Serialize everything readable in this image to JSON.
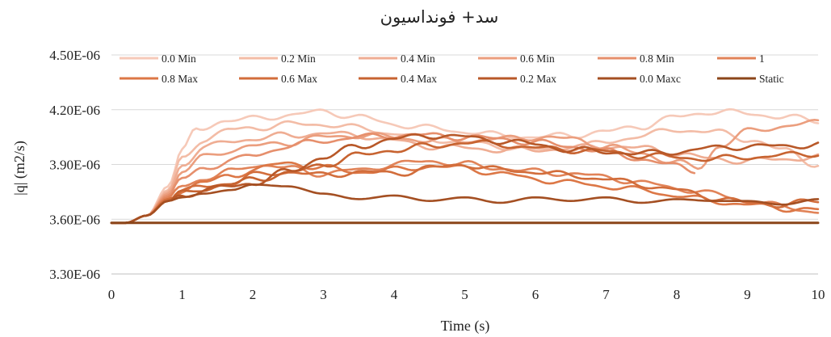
{
  "chart_data": {
    "type": "line",
    "title": "سد+ فونداسیون",
    "xlabel": "Time (s)",
    "ylabel": "|q| (m2/s)",
    "xlim": [
      0,
      10
    ],
    "ylim": [
      3.3e-06,
      4.5e-06
    ],
    "x_ticks": [
      "0",
      "1",
      "2",
      "3",
      "4",
      "5",
      "6",
      "7",
      "8",
      "9",
      "10"
    ],
    "y_ticks": [
      "3.30E-06",
      "3.60E-06",
      "3.90E-06",
      "4.20E-06",
      "4.50E-06"
    ],
    "y_tick_values": [
      3.3e-06,
      3.6e-06,
      3.9e-06,
      4.2e-06,
      4.5e-06
    ],
    "grid": "horizontal",
    "legend_position": "top",
    "series": [
      {
        "name": "0.0 Min",
        "color": "#f6c9b8",
        "x": [
          0,
          0.2,
          0.5,
          0.8,
          1.0,
          1.2,
          1.6,
          2.0,
          2.5,
          3.0,
          3.5,
          4.0,
          4.5,
          5.0,
          5.5,
          6.0,
          6.5,
          7.0,
          7.5,
          8.0,
          8.5,
          9.0,
          9.5,
          10.0
        ],
        "y": [
          3.58e-06,
          3.58e-06,
          3.62e-06,
          3.78e-06,
          3.97e-06,
          4.09e-06,
          4.14e-06,
          4.15e-06,
          4.17e-06,
          4.19e-06,
          4.16e-06,
          4.12e-06,
          4.1e-06,
          4.08e-06,
          4.06e-06,
          4.05e-06,
          4.06e-06,
          4.08e-06,
          4.11e-06,
          4.16e-06,
          4.19e-06,
          4.18e-06,
          4.16e-06,
          4.14e-06
        ]
      },
      {
        "name": "0.2 Min",
        "color": "#f3bca6",
        "x": [
          0,
          0.2,
          0.5,
          0.8,
          1.0,
          1.3,
          1.7,
          2.0,
          2.5,
          3.0,
          3.5,
          4.0,
          4.5,
          5.0,
          5.5,
          6.0,
          6.5,
          7.0,
          7.5,
          8.0,
          8.5,
          9.0,
          9.5,
          10.0
        ],
        "y": [
          3.58e-06,
          3.58e-06,
          3.62e-06,
          3.76e-06,
          3.93e-06,
          4.04e-06,
          4.09e-06,
          4.1e-06,
          4.12e-06,
          4.12e-06,
          4.1e-06,
          4.07e-06,
          4.04e-06,
          4.02e-06,
          4e-06,
          3.98e-06,
          3.99e-06,
          4.02e-06,
          4.06e-06,
          4.09e-06,
          4.08e-06,
          4.04e-06,
          3.98e-06,
          3.9e-06
        ]
      },
      {
        "name": "0.4 Min",
        "color": "#efad93",
        "x": [
          0,
          0.2,
          0.5,
          0.8,
          1.0,
          1.3,
          1.7,
          2.0,
          2.5,
          3.0,
          3.5,
          4.0,
          4.5,
          5.0,
          5.5,
          6.0,
          6.5,
          7.0,
          7.5,
          8.0,
          8.5,
          9.0,
          9.5,
          10.0
        ],
        "y": [
          3.58e-06,
          3.58e-06,
          3.62e-06,
          3.75e-06,
          3.9e-06,
          3.99e-06,
          4.03e-06,
          4.04e-06,
          4.06e-06,
          4.07e-06,
          4.06e-06,
          4.03e-06,
          4e-06,
          3.99e-06,
          3.98e-06,
          3.98e-06,
          3.99e-06,
          4e-06,
          3.99e-06,
          3.96e-06,
          3.93e-06,
          3.92e-06,
          3.93e-06,
          3.94e-06
        ]
      },
      {
        "name": "0.6 Min",
        "color": "#eb9e7e",
        "x": [
          0,
          0.2,
          0.5,
          0.8,
          1.0,
          1.3,
          1.7,
          2.0,
          2.5,
          3.0,
          3.5,
          4.0,
          4.5,
          5.0,
          5.5,
          6.0,
          6.5,
          7.0,
          7.5,
          8.0,
          8.3,
          8.6,
          9.0,
          9.5,
          10.0
        ],
        "y": [
          3.58e-06,
          3.58e-06,
          3.62e-06,
          3.74e-06,
          3.86e-06,
          3.94e-06,
          3.98e-06,
          4e-06,
          4.02e-06,
          4.05e-06,
          4.06e-06,
          4.05e-06,
          4.03e-06,
          4.03e-06,
          4.04e-06,
          4.05e-06,
          4.04e-06,
          4e-06,
          3.96e-06,
          3.91e-06,
          3.88e-06,
          4e-06,
          4.08e-06,
          4.11e-06,
          4.13e-06
        ]
      },
      {
        "name": "0.8 Min",
        "color": "#e68f6c",
        "x": [
          0,
          0.2,
          0.5,
          0.8,
          1.0,
          1.3,
          1.7,
          2.0,
          2.5,
          3.0,
          3.5,
          4.0,
          4.5,
          5.0,
          5.5,
          6.0,
          6.5,
          7.0,
          7.5,
          8.0,
          8.25
        ],
        "y": [
          3.58e-06,
          3.58e-06,
          3.62e-06,
          3.73e-06,
          3.82e-06,
          3.88e-06,
          3.92e-06,
          3.95e-06,
          4e-06,
          4.03e-06,
          4.05e-06,
          4.06e-06,
          4.06e-06,
          4.05e-06,
          4.04e-06,
          4.02e-06,
          4e-06,
          3.97e-06,
          3.93e-06,
          3.89e-06,
          3.87e-06
        ]
      },
      {
        "name": "1",
        "color": "#e18358",
        "x": [
          0,
          0.2,
          0.5,
          0.8,
          1.0,
          1.3,
          1.7,
          2.0,
          2.5,
          3.0,
          3.5,
          4.0,
          4.5,
          5.0,
          5.5,
          6.0,
          6.5,
          7.0,
          7.5,
          8.0,
          8.5,
          9.0,
          9.5,
          10.0
        ],
        "y": [
          3.58e-06,
          3.58e-06,
          3.62e-06,
          3.72e-06,
          3.79e-06,
          3.82e-06,
          3.86e-06,
          3.9e-06,
          3.88e-06,
          3.85e-06,
          3.87e-06,
          3.9e-06,
          3.92e-06,
          3.9e-06,
          3.88e-06,
          3.86e-06,
          3.85e-06,
          3.83e-06,
          3.8e-06,
          3.77e-06,
          3.74e-06,
          3.7e-06,
          3.67e-06,
          3.64e-06
        ]
      },
      {
        "name": "0.8 Max",
        "color": "#dc7746",
        "x": [
          0,
          0.2,
          0.5,
          0.8,
          1.0,
          1.3,
          1.7,
          2.0,
          2.5,
          3.0,
          3.5,
          4.0,
          4.5,
          5.0,
          5.5,
          6.0,
          6.5,
          7.0,
          7.5,
          8.0,
          8.5,
          9.0,
          9.5,
          10.0
        ],
        "y": [
          3.58e-06,
          3.58e-06,
          3.62e-06,
          3.71e-06,
          3.76e-06,
          3.8e-06,
          3.84e-06,
          3.87e-06,
          3.91e-06,
          3.88e-06,
          3.86e-06,
          3.87e-06,
          3.89e-06,
          3.88e-06,
          3.85e-06,
          3.82e-06,
          3.8e-06,
          3.78e-06,
          3.76e-06,
          3.73e-06,
          3.7e-06,
          3.68e-06,
          3.66e-06,
          3.65e-06
        ]
      },
      {
        "name": "0.6 Max",
        "color": "#d26d3b",
        "x": [
          0,
          0.2,
          0.5,
          0.8,
          1.0,
          1.3,
          1.7,
          2.0,
          2.5,
          3.0,
          3.5,
          4.0,
          4.5,
          5.0,
          5.5,
          6.0,
          6.5,
          7.0,
          7.5,
          8.0,
          8.5,
          9.0,
          9.5,
          10.0
        ],
        "y": [
          3.58e-06,
          3.58e-06,
          3.62e-06,
          3.71e-06,
          3.75e-06,
          3.78e-06,
          3.8e-06,
          3.84e-06,
          3.86e-06,
          3.84e-06,
          3.86e-06,
          3.85e-06,
          3.88e-06,
          3.9e-06,
          3.87e-06,
          3.86e-06,
          3.84e-06,
          3.82e-06,
          3.79e-06,
          3.76e-06,
          3.72e-06,
          3.69e-06,
          3.68e-06,
          3.7e-06
        ]
      },
      {
        "name": "0.4 Max",
        "color": "#c76330",
        "x": [
          0,
          0.2,
          0.5,
          0.8,
          1.0,
          1.3,
          1.7,
          2.0,
          2.5,
          3.0,
          3.5,
          4.0,
          4.5,
          5.0,
          5.5,
          6.0,
          6.5,
          7.0,
          7.5,
          8.0,
          8.5,
          9.0,
          9.5,
          10.0
        ],
        "y": [
          3.58e-06,
          3.58e-06,
          3.62e-06,
          3.7e-06,
          3.74e-06,
          3.77e-06,
          3.79e-06,
          3.82e-06,
          3.85e-06,
          3.9e-06,
          3.95e-06,
          3.98e-06,
          4e-06,
          4.02e-06,
          4.01e-06,
          3.99e-06,
          3.98e-06,
          3.97e-06,
          3.95e-06,
          3.94e-06,
          3.93e-06,
          3.94e-06,
          3.95e-06,
          3.96e-06
        ]
      },
      {
        "name": "0.2 Max",
        "color": "#b85828",
        "x": [
          0,
          0.2,
          0.5,
          0.8,
          1.0,
          1.3,
          1.7,
          2.0,
          2.5,
          3.0,
          3.5,
          4.0,
          4.5,
          5.0,
          5.5,
          6.0,
          6.5,
          7.0,
          7.5,
          8.0,
          8.5,
          9.0,
          9.5,
          10.0
        ],
        "y": [
          3.58e-06,
          3.58e-06,
          3.62e-06,
          3.7e-06,
          3.73e-06,
          3.76e-06,
          3.78e-06,
          3.8e-06,
          3.86e-06,
          3.94e-06,
          4e-06,
          4.04e-06,
          4.06e-06,
          4.05e-06,
          4.03e-06,
          4.01e-06,
          3.98e-06,
          3.97e-06,
          3.96e-06,
          3.97e-06,
          3.99e-06,
          4e-06,
          4e-06,
          4.01e-06
        ]
      },
      {
        "name": "0.0 Maxc",
        "color": "#a44f22",
        "x": [
          0,
          0.2,
          0.5,
          0.8,
          1.0,
          1.3,
          1.7,
          2.0,
          2.5,
          3.0,
          3.5,
          4.0,
          4.5,
          5.0,
          5.5,
          6.0,
          6.5,
          7.0,
          7.5,
          8.0,
          8.5,
          9.0,
          9.5,
          10.0
        ],
        "y": [
          3.58e-06,
          3.58e-06,
          3.62e-06,
          3.7e-06,
          3.72e-06,
          3.74e-06,
          3.76e-06,
          3.79e-06,
          3.78e-06,
          3.74e-06,
          3.71e-06,
          3.73e-06,
          3.7e-06,
          3.72e-06,
          3.69e-06,
          3.72e-06,
          3.7e-06,
          3.72e-06,
          3.69e-06,
          3.71e-06,
          3.7e-06,
          3.7e-06,
          3.68e-06,
          3.71e-06
        ]
      },
      {
        "name": "Static",
        "color": "#8b4519",
        "x": [
          0,
          10
        ],
        "y": [
          3.58e-06,
          3.58e-06
        ]
      }
    ]
  }
}
